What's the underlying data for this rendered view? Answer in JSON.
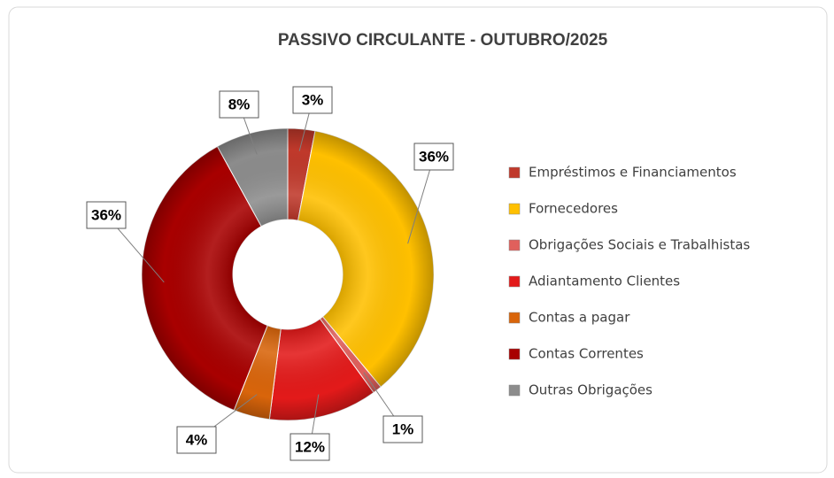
{
  "chart_data": {
    "type": "donut",
    "title": "PASSIVO  CIRCULANTE - OUTUBRO/2025",
    "categories": [
      "Empréstimos e Financiamentos",
      "Fornecedores",
      "Obrigações Sociais e Trabalhistas",
      "Adiantamento Clientes",
      "Contas a pagar",
      "Contas Correntes",
      "Outras Obrigações"
    ],
    "values": [
      3,
      36,
      1,
      12,
      4,
      36,
      8
    ],
    "value_labels": [
      "3%",
      "36%",
      "1%",
      "12%",
      "4%",
      "36%",
      "8%"
    ],
    "colors": [
      "#c0392b",
      "#ffc000",
      "#e0605c",
      "#e31a1a",
      "#d9650b",
      "#a80000",
      "#8c8c8c"
    ],
    "legend": "right"
  }
}
